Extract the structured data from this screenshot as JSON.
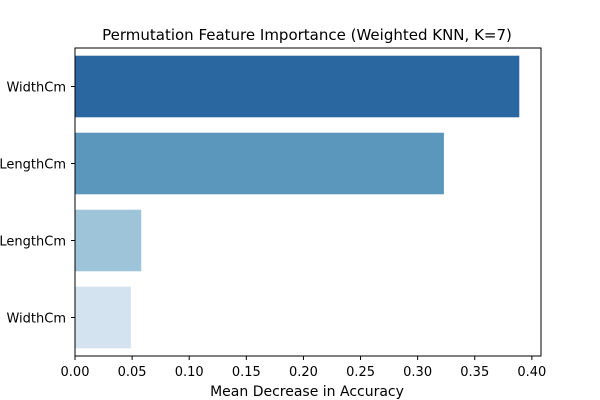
{
  "chart_data": {
    "type": "bar",
    "orientation": "horizontal",
    "title": "Permutation Feature Importance (Weighted KNN, K=7)",
    "xlabel": "Mean Decrease in Accuracy",
    "ylabel": "",
    "categories": [
      "WidthCm",
      "LengthCm",
      "LengthCm",
      "WidthCm"
    ],
    "values": [
      0.389,
      0.323,
      0.058,
      0.049
    ],
    "colors": [
      "#2a66a0",
      "#5b97bc",
      "#9ec4d9",
      "#d4e3f0"
    ],
    "xlim": [
      0,
      0.408
    ],
    "xticks": [
      0.0,
      0.05,
      0.1,
      0.15,
      0.2,
      0.25,
      0.3,
      0.35,
      0.4
    ],
    "xtick_labels": [
      "0.00",
      "0.05",
      "0.10",
      "0.15",
      "0.20",
      "0.25",
      "0.30",
      "0.35",
      "0.40"
    ],
    "grid": false,
    "legend": false
  }
}
